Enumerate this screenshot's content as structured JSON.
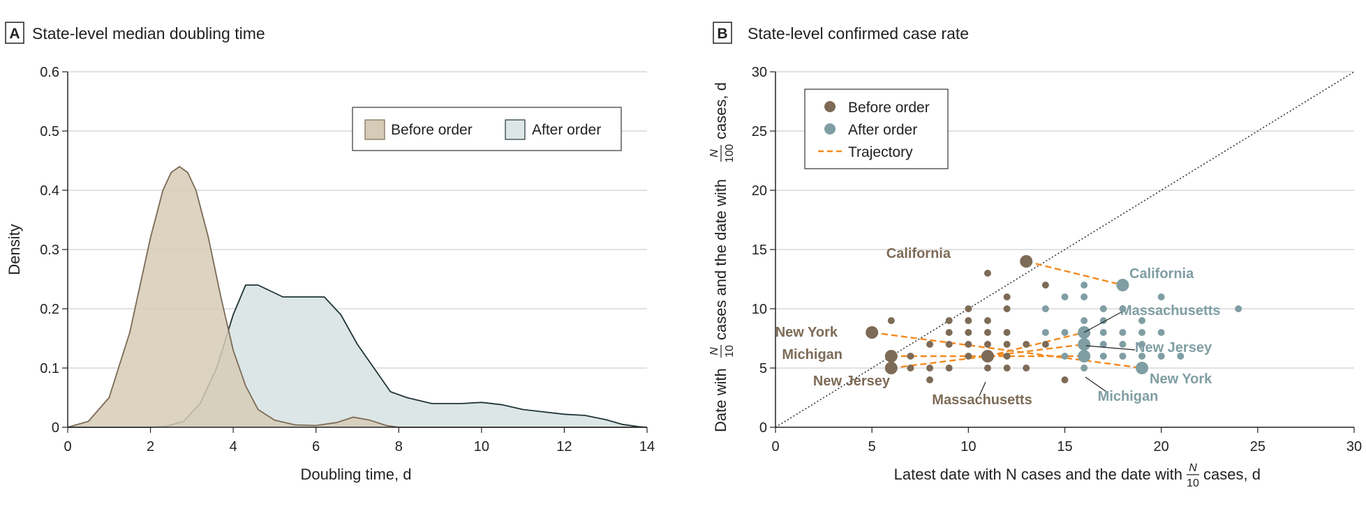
{
  "chart_data": [
    {
      "panel": "A",
      "type": "area",
      "title": "State-level median doubling time",
      "xlabel": "Doubling time, d",
      "ylabel": "Density",
      "xlim": [
        0,
        14
      ],
      "ylim": [
        0,
        0.6
      ],
      "xticks": [
        "0",
        "2",
        "4",
        "6",
        "8",
        "10",
        "12",
        "14"
      ],
      "yticks": [
        "0",
        "0.1",
        "0.2",
        "0.3",
        "0.4",
        "0.5",
        "0.6"
      ],
      "grid": "horizontal",
      "legend_position": "top-right",
      "colors": {
        "before_fill": "#d6cbb6",
        "before_line": "#7a6a55",
        "after_fill": "#dde6e6",
        "after_line": "#1f3436"
      },
      "series": [
        {
          "name": "Before order",
          "x": [
            0,
            0.5,
            1,
            1.5,
            2,
            2.3,
            2.5,
            2.7,
            2.9,
            3.1,
            3.4,
            3.7,
            4,
            4.3,
            4.6,
            5,
            5.5,
            6,
            6.5,
            6.9,
            7.3,
            7.7,
            8,
            14
          ],
          "y": [
            0,
            0.01,
            0.05,
            0.16,
            0.32,
            0.4,
            0.43,
            0.44,
            0.43,
            0.4,
            0.32,
            0.22,
            0.13,
            0.07,
            0.03,
            0.012,
            0.004,
            0.003,
            0.008,
            0.017,
            0.012,
            0.003,
            0,
            0
          ]
        },
        {
          "name": "After order",
          "x": [
            0,
            2,
            2.4,
            2.8,
            3.2,
            3.6,
            4,
            4.3,
            4.6,
            4.9,
            5.2,
            5.5,
            5.8,
            6.2,
            6.6,
            7,
            7.4,
            7.8,
            8.2,
            8.8,
            9.5,
            10,
            10.5,
            11,
            12,
            12.5,
            13,
            13.4,
            13.8,
            14
          ],
          "y": [
            0,
            0,
            0.002,
            0.01,
            0.04,
            0.1,
            0.19,
            0.24,
            0.24,
            0.23,
            0.22,
            0.22,
            0.22,
            0.22,
            0.19,
            0.14,
            0.1,
            0.06,
            0.05,
            0.04,
            0.04,
            0.042,
            0.038,
            0.03,
            0.022,
            0.02,
            0.013,
            0.005,
            0.001,
            0
          ]
        }
      ]
    },
    {
      "panel": "B",
      "type": "scatter",
      "title": "State-level confirmed case rate",
      "xlabel_pre": "Latest date with N cases and the date with",
      "xlabel_frac": {
        "num": "N",
        "den": "10"
      },
      "xlabel_post": "cases, d",
      "ylabel_pre": "Date with",
      "ylabel_frac1": {
        "num": "N",
        "den": "10"
      },
      "ylabel_mid": "cases and the date with",
      "ylabel_frac2": {
        "num": "N",
        "den": "100"
      },
      "ylabel_post": "cases, d",
      "xlim": [
        0,
        30
      ],
      "ylim": [
        0,
        30
      ],
      "xticks": [
        "0",
        "5",
        "10",
        "15",
        "20",
        "25",
        "30"
      ],
      "yticks": [
        "0",
        "5",
        "10",
        "15",
        "20",
        "25",
        "30"
      ],
      "grid": "horizontal",
      "diagonal": "dotted y = x",
      "legend_position": "top-left",
      "legend": [
        "Before order",
        "After order",
        "Trajectory"
      ],
      "colors": {
        "before": "#7d6b57",
        "after": "#7f9ea3",
        "trajectory": "#f28a1e"
      },
      "before_points": [
        [
          6,
          9
        ],
        [
          6,
          6
        ],
        [
          7,
          5
        ],
        [
          7,
          6
        ],
        [
          8,
          4
        ],
        [
          8,
          5
        ],
        [
          8,
          7
        ],
        [
          9,
          5
        ],
        [
          9,
          7
        ],
        [
          9,
          8
        ],
        [
          9,
          9
        ],
        [
          10,
          6
        ],
        [
          10,
          7
        ],
        [
          10,
          8
        ],
        [
          10,
          9
        ],
        [
          10,
          10
        ],
        [
          11,
          5
        ],
        [
          11,
          7
        ],
        [
          11,
          8
        ],
        [
          11,
          9
        ],
        [
          11,
          13
        ],
        [
          12,
          5
        ],
        [
          12,
          6
        ],
        [
          12,
          7
        ],
        [
          12,
          8
        ],
        [
          12,
          10
        ],
        [
          12,
          11
        ],
        [
          13,
          5
        ],
        [
          13,
          7
        ],
        [
          14,
          12
        ],
        [
          14,
          7
        ],
        [
          15,
          4
        ]
      ],
      "after_points": [
        [
          14,
          10
        ],
        [
          14,
          8
        ],
        [
          15,
          11
        ],
        [
          15,
          8
        ],
        [
          15,
          6
        ],
        [
          16,
          12
        ],
        [
          16,
          11
        ],
        [
          16,
          9
        ],
        [
          16,
          5
        ],
        [
          17,
          10
        ],
        [
          17,
          9
        ],
        [
          17,
          8
        ],
        [
          17,
          7
        ],
        [
          17,
          6
        ],
        [
          18,
          10
        ],
        [
          18,
          8
        ],
        [
          18,
          7
        ],
        [
          18,
          6
        ],
        [
          19,
          9
        ],
        [
          19,
          8
        ],
        [
          19,
          7
        ],
        [
          19,
          6
        ],
        [
          20,
          11
        ],
        [
          20,
          8
        ],
        [
          20,
          6
        ],
        [
          21,
          6
        ],
        [
          24,
          10
        ]
      ],
      "highlighted_states": [
        {
          "name": "California",
          "before": [
            13,
            14
          ],
          "after": [
            18,
            12
          ]
        },
        {
          "name": "Massachusetts",
          "before": [
            11,
            6
          ],
          "after": [
            16,
            8
          ]
        },
        {
          "name": "New York",
          "before": [
            5,
            8
          ],
          "after": [
            19,
            5
          ]
        },
        {
          "name": "Michigan",
          "before": [
            6,
            6
          ],
          "after": [
            16,
            6
          ]
        },
        {
          "name": "New Jersey",
          "before": [
            6,
            5
          ],
          "after": [
            16,
            7
          ]
        }
      ]
    }
  ]
}
